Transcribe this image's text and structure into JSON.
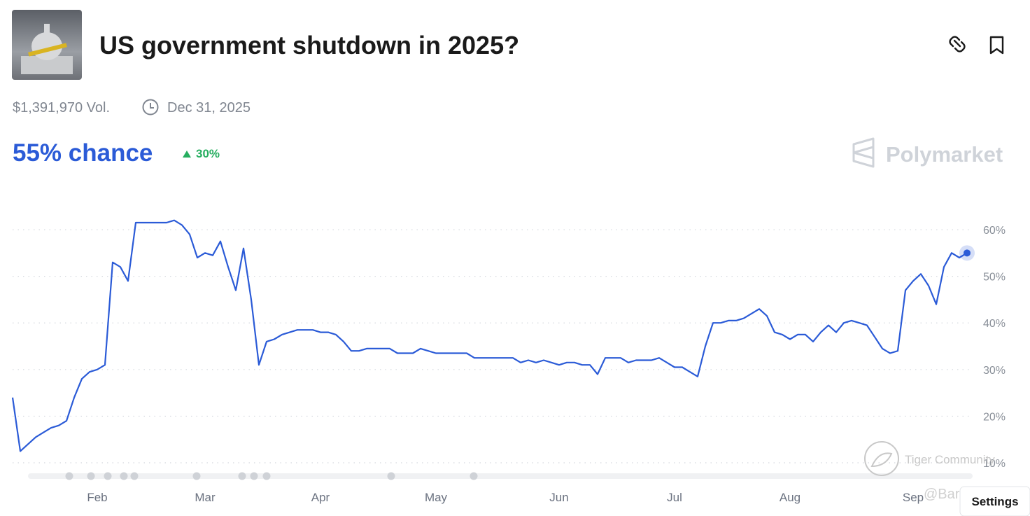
{
  "header": {
    "title": "US government shutdown in 2025?",
    "volume": "$1,391,970 Vol.",
    "end_date": "Dec 31, 2025",
    "chance": "55% chance",
    "change": "30%",
    "brand": "Polymarket"
  },
  "chart_data": {
    "type": "line",
    "categories": [
      null,
      null,
      null,
      null,
      null,
      null,
      null,
      null,
      null,
      null,
      null,
      "Feb",
      null,
      null,
      null,
      null,
      null,
      null,
      null,
      null,
      null,
      null,
      null,
      null,
      null,
      "Mar",
      null,
      null,
      null,
      null,
      null,
      null,
      null,
      null,
      null,
      null,
      null,
      null,
      null,
      null,
      "Apr",
      null,
      null,
      null,
      null,
      null,
      null,
      null,
      null,
      null,
      null,
      null,
      null,
      null,
      null,
      "May",
      null,
      null,
      null,
      null,
      null,
      null,
      null,
      null,
      null,
      null,
      null,
      null,
      null,
      null,
      null,
      "Jun",
      null,
      null,
      null,
      null,
      null,
      null,
      null,
      null,
      null,
      null,
      null,
      null,
      null,
      null,
      "Jul",
      null,
      null,
      null,
      null,
      null,
      null,
      null,
      null,
      null,
      null,
      null,
      null,
      null,
      null,
      "Aug",
      null,
      null,
      null,
      null,
      null,
      null,
      null,
      null,
      null,
      null,
      null,
      null,
      null,
      null,
      null,
      "Sep",
      null,
      null,
      null,
      null,
      null,
      null,
      null
    ],
    "values": [
      24,
      12.5,
      14,
      15.5,
      16.5,
      17.5,
      18,
      19,
      24,
      28,
      29.5,
      30,
      31,
      53,
      52,
      49,
      61.5,
      61.5,
      61.5,
      61.5,
      61.5,
      62,
      61,
      59,
      54,
      55,
      54.5,
      57.5,
      52,
      47,
      56,
      45,
      31,
      36,
      36.5,
      37.5,
      38,
      38.5,
      38.5,
      38.5,
      38,
      38,
      37.5,
      36,
      34,
      34,
      34.5,
      34.5,
      34.5,
      34.5,
      33.5,
      33.5,
      33.5,
      34.5,
      34,
      33.5,
      33.5,
      33.5,
      33.5,
      33.5,
      32.5,
      32.5,
      32.5,
      32.5,
      32.5,
      32.5,
      31.5,
      32,
      31.5,
      32,
      31.5,
      31,
      31.5,
      31.5,
      31,
      31,
      29,
      32.5,
      32.5,
      32.5,
      31.5,
      32,
      32,
      32,
      32.5,
      31.5,
      30.5,
      30.5,
      29.5,
      28.5,
      35,
      40,
      40,
      40.5,
      40.5,
      41,
      42,
      43,
      41.5,
      38,
      37.5,
      36.5,
      37.5,
      37.5,
      36,
      38,
      39.5,
      38,
      40,
      40.5,
      40,
      39.5,
      37,
      34.5,
      33.5,
      34,
      47,
      49,
      50.5,
      48,
      44,
      52,
      55,
      54,
      55
    ],
    "color": "#2b5bd7",
    "ylim": [
      7,
      64
    ],
    "yticks": [
      {
        "value": 10,
        "label": "10%"
      },
      {
        "value": 20,
        "label": "20%"
      },
      {
        "value": 30,
        "label": "30%"
      },
      {
        "value": 40,
        "label": "40%"
      },
      {
        "value": 50,
        "label": "50%"
      },
      {
        "value": 60,
        "label": "60%"
      }
    ],
    "grid": true
  },
  "settings_button": "Settings",
  "watermark": [
    "Tiger Community",
    "@Barcode"
  ]
}
